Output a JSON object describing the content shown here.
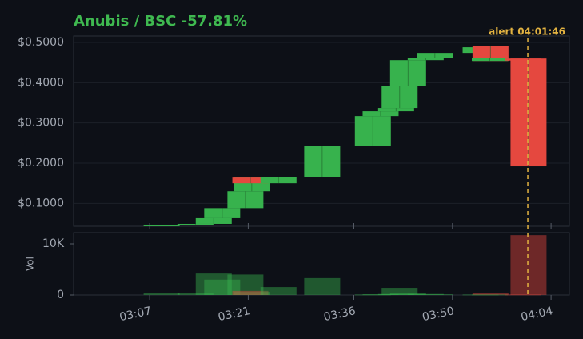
{
  "chart_data": {
    "type": "candlestick",
    "title": "Anubis / BSC  -57.81%",
    "x": [
      188.7,
      193.5,
      196.1,
      197.3,
      200.6,
      201.5,
      201.3,
      205.3,
      211.5,
      218.7,
      219.8,
      222.0,
      222.5,
      223.7,
      226.2,
      227.5,
      234.0,
      235.4,
      235.3,
      240.0,
      240.8
    ],
    "open": [
      0.045,
      0.046,
      0.049,
      0.063,
      0.088,
      0.13,
      0.164,
      0.15,
      0.166,
      0.243,
      0.317,
      0.329,
      0.337,
      0.391,
      0.456,
      0.462,
      0.474,
      0.492,
      0.454,
      0.46,
      0.46
    ],
    "high": [
      0.047,
      0.049,
      0.063,
      0.088,
      0.13,
      0.164,
      0.164,
      0.166,
      0.243,
      0.317,
      0.329,
      0.337,
      0.391,
      0.456,
      0.462,
      0.474,
      0.488,
      0.492,
      0.462,
      0.46,
      0.46
    ],
    "low": [
      0.045,
      0.046,
      0.049,
      0.063,
      0.088,
      0.13,
      0.15,
      0.15,
      0.166,
      0.243,
      0.317,
      0.329,
      0.337,
      0.391,
      0.456,
      0.462,
      0.474,
      0.454,
      0.454,
      0.455,
      0.192
    ],
    "close": [
      0.047,
      0.049,
      0.063,
      0.088,
      0.13,
      0.164,
      0.15,
      0.166,
      0.243,
      0.317,
      0.329,
      0.337,
      0.391,
      0.456,
      0.462,
      0.474,
      0.488,
      0.454,
      0.462,
      0.455,
      0.192
    ],
    "volume": [
      450,
      450,
      4200,
      3000,
      4000,
      600,
      800,
      1550,
      3300,
      100,
      150,
      200,
      1400,
      300,
      200,
      150,
      100,
      450,
      100,
      100,
      11700
    ],
    "up_color": "#37b24d",
    "down_color": "#e5483f",
    "xlim": [
      176.2,
      246.6
    ],
    "xticks": [
      {
        "value": 187,
        "label": "03:07"
      },
      {
        "value": 201,
        "label": "03:21"
      },
      {
        "value": 216,
        "label": "03:36"
      },
      {
        "value": 230,
        "label": "03:50"
      },
      {
        "value": 244,
        "label": "04:04"
      }
    ],
    "ylim": [
      0.043,
      0.516
    ],
    "yticks": [
      {
        "value": 0.1,
        "label": "$0.1000"
      },
      {
        "value": 0.2,
        "label": "$0.2000"
      },
      {
        "value": 0.3,
        "label": "$0.3000"
      },
      {
        "value": 0.4,
        "label": "$0.4000"
      },
      {
        "value": 0.5,
        "label": "$0.5000"
      }
    ],
    "y2label": "Vol",
    "y2lim": [
      0,
      12190
    ],
    "y2ticks": [
      0,
      {
        "value": 10000,
        "label": "10K"
      }
    ],
    "grid": true,
    "alert": {
      "label": "alert 04:01:46",
      "x": 240.7,
      "color": "#e3b341"
    }
  }
}
